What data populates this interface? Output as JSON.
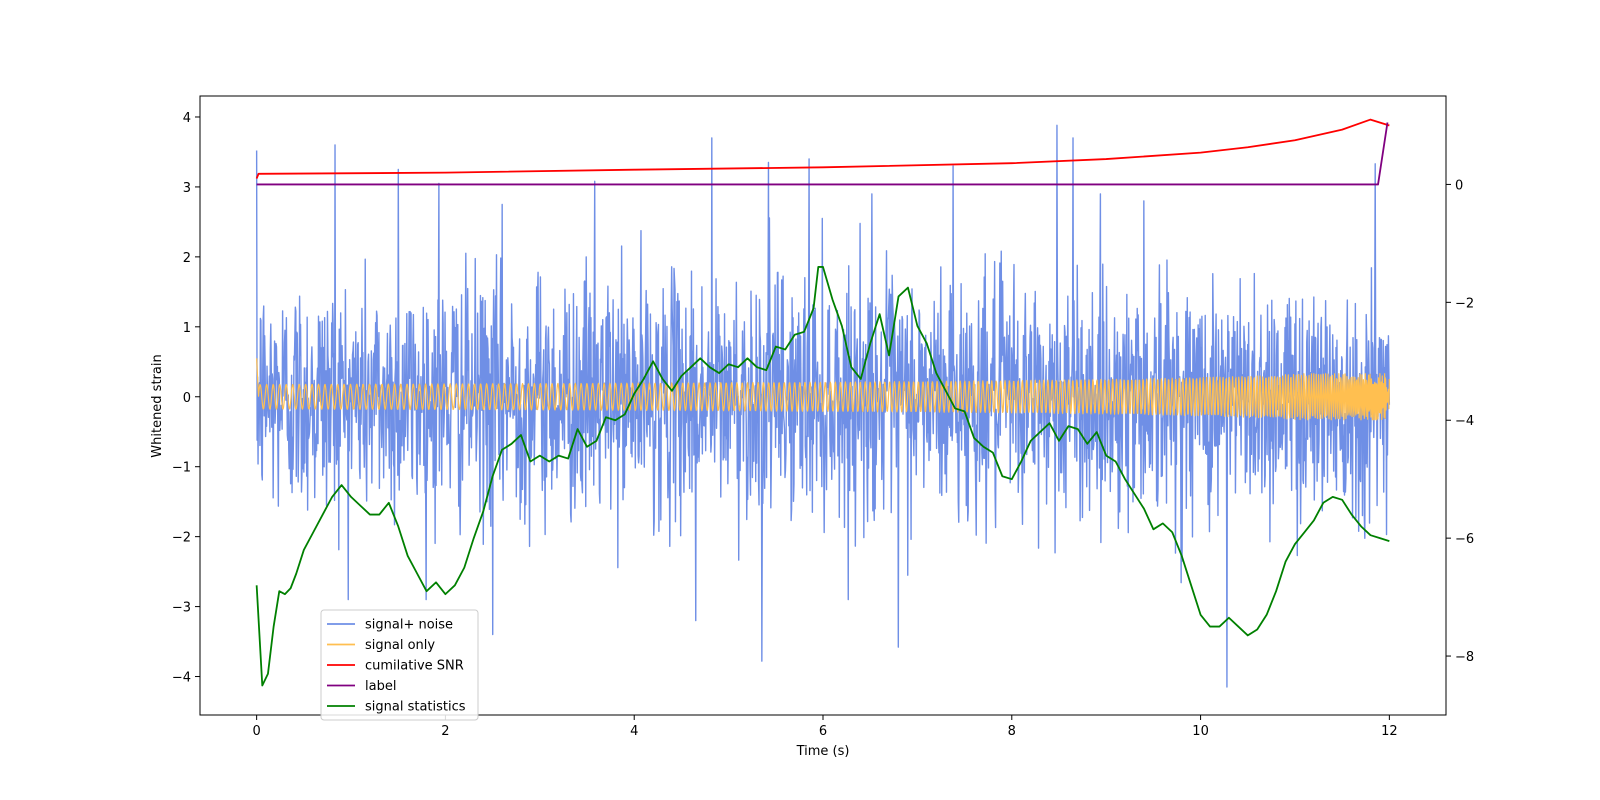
{
  "chart_data": {
    "type": "line",
    "title": "",
    "xlabel": "Time (s)",
    "ylabel": "Whitened strain",
    "y2label": "",
    "xlim": [
      -0.6,
      12.6
    ],
    "ylim": [
      -4.55,
      4.3
    ],
    "y2lim": [
      -9.0,
      1.5
    ],
    "x_ticks": [
      0,
      2,
      4,
      6,
      8,
      10,
      12
    ],
    "y_ticks": [
      -4,
      -3,
      -2,
      -1,
      0,
      1,
      2,
      3,
      4
    ],
    "y2_ticks": [
      -8,
      -6,
      -4,
      -2,
      0
    ],
    "grid": false,
    "legend_position": "lower-left",
    "series": [
      {
        "name": "signal+ noise",
        "axis": "left",
        "color": "#6f8fe6",
        "x_range": [
          0,
          12
        ],
        "sample_count": 2400,
        "std": 0.85,
        "spike_x": [
          0.0,
          0.83,
          1.5,
          1.93,
          2.6,
          3.58,
          4.82,
          5.42,
          5.85,
          6.52,
          7.38,
          8.48,
          8.65,
          9.4,
          11.85,
          10.28,
          5.35,
          6.8,
          2.5,
          4.65
        ],
        "spike_y": [
          3.52,
          3.6,
          3.25,
          3.05,
          2.75,
          3.08,
          3.7,
          3.35,
          3.4,
          2.9,
          3.3,
          3.88,
          3.7,
          2.8,
          3.33,
          -4.15,
          -3.78,
          -3.58,
          -3.4,
          -3.2
        ]
      },
      {
        "name": "signal only",
        "axis": "left",
        "color": "#ffbf50",
        "x_range": [
          0,
          12
        ],
        "start_value": 0.55,
        "end_amplitude": 0.33
      },
      {
        "name": "cumilative SNR",
        "axis": "right",
        "color": "#ff0000",
        "x": [
          0,
          0.02,
          2,
          4,
          6,
          8,
          9,
          10,
          10.5,
          11,
          11.5,
          11.8,
          12
        ],
        "values": [
          0.1,
          0.18,
          0.2,
          0.25,
          0.29,
          0.36,
          0.43,
          0.54,
          0.63,
          0.75,
          0.93,
          1.1,
          1.0
        ]
      },
      {
        "name": "label",
        "axis": "right",
        "color": "#800080",
        "x": [
          0,
          11.88,
          11.98
        ],
        "values": [
          0,
          0,
          1.05
        ]
      },
      {
        "name": "signal statistics",
        "axis": "right",
        "color": "#008000",
        "x": [
          0,
          0.06,
          0.12,
          0.18,
          0.24,
          0.3,
          0.36,
          0.42,
          0.5,
          0.6,
          0.7,
          0.8,
          0.9,
          1.0,
          1.1,
          1.2,
          1.3,
          1.4,
          1.5,
          1.6,
          1.7,
          1.8,
          1.9,
          2.0,
          2.1,
          2.2,
          2.3,
          2.4,
          2.5,
          2.6,
          2.7,
          2.8,
          2.9,
          3.0,
          3.1,
          3.2,
          3.3,
          3.4,
          3.5,
          3.6,
          3.7,
          3.8,
          3.9,
          4.0,
          4.1,
          4.2,
          4.3,
          4.4,
          4.5,
          4.6,
          4.7,
          4.8,
          4.9,
          5.0,
          5.1,
          5.2,
          5.3,
          5.4,
          5.5,
          5.6,
          5.7,
          5.8,
          5.9,
          5.95,
          6.0,
          6.1,
          6.2,
          6.3,
          6.4,
          6.5,
          6.6,
          6.7,
          6.8,
          6.9,
          7.0,
          7.1,
          7.2,
          7.3,
          7.4,
          7.5,
          7.6,
          7.7,
          7.8,
          7.9,
          8.0,
          8.1,
          8.2,
          8.3,
          8.4,
          8.5,
          8.6,
          8.7,
          8.8,
          8.9,
          9.0,
          9.1,
          9.2,
          9.3,
          9.4,
          9.5,
          9.6,
          9.7,
          9.8,
          9.9,
          10.0,
          10.1,
          10.2,
          10.3,
          10.4,
          10.5,
          10.6,
          10.7,
          10.8,
          10.9,
          11.0,
          11.1,
          11.2,
          11.3,
          11.4,
          11.5,
          11.6,
          11.7,
          11.8,
          11.9,
          12.0
        ],
        "values": [
          -6.8,
          -8.5,
          -8.3,
          -7.5,
          -6.9,
          -6.95,
          -6.85,
          -6.6,
          -6.2,
          -5.9,
          -5.6,
          -5.3,
          -5.1,
          -5.3,
          -5.45,
          -5.6,
          -5.6,
          -5.4,
          -5.8,
          -6.3,
          -6.6,
          -6.9,
          -6.75,
          -6.95,
          -6.8,
          -6.5,
          -6.0,
          -5.55,
          -4.95,
          -4.5,
          -4.4,
          -4.25,
          -4.7,
          -4.6,
          -4.7,
          -4.6,
          -4.65,
          -4.15,
          -4.45,
          -4.35,
          -3.95,
          -4.0,
          -3.9,
          -3.55,
          -3.3,
          -3.0,
          -3.3,
          -3.5,
          -3.25,
          -3.1,
          -2.95,
          -3.1,
          -3.2,
          -3.05,
          -3.1,
          -2.95,
          -3.1,
          -3.15,
          -2.75,
          -2.8,
          -2.55,
          -2.5,
          -2.1,
          -1.4,
          -1.4,
          -1.95,
          -2.4,
          -3.1,
          -3.3,
          -2.7,
          -2.2,
          -2.9,
          -1.9,
          -1.75,
          -2.4,
          -2.7,
          -3.2,
          -3.5,
          -3.8,
          -3.85,
          -4.3,
          -4.45,
          -4.55,
          -4.95,
          -5.0,
          -4.7,
          -4.35,
          -4.2,
          -4.05,
          -4.35,
          -4.1,
          -4.15,
          -4.4,
          -4.2,
          -4.6,
          -4.7,
          -5.0,
          -5.25,
          -5.5,
          -5.85,
          -5.75,
          -5.9,
          -6.3,
          -6.8,
          -7.3,
          -7.5,
          -7.5,
          -7.35,
          -7.5,
          -7.65,
          -7.55,
          -7.3,
          -6.9,
          -6.4,
          -6.1,
          -5.9,
          -5.7,
          -5.4,
          -5.3,
          -5.35,
          -5.6,
          -5.8,
          -5.95,
          -6.0,
          -6.05
        ]
      }
    ]
  }
}
